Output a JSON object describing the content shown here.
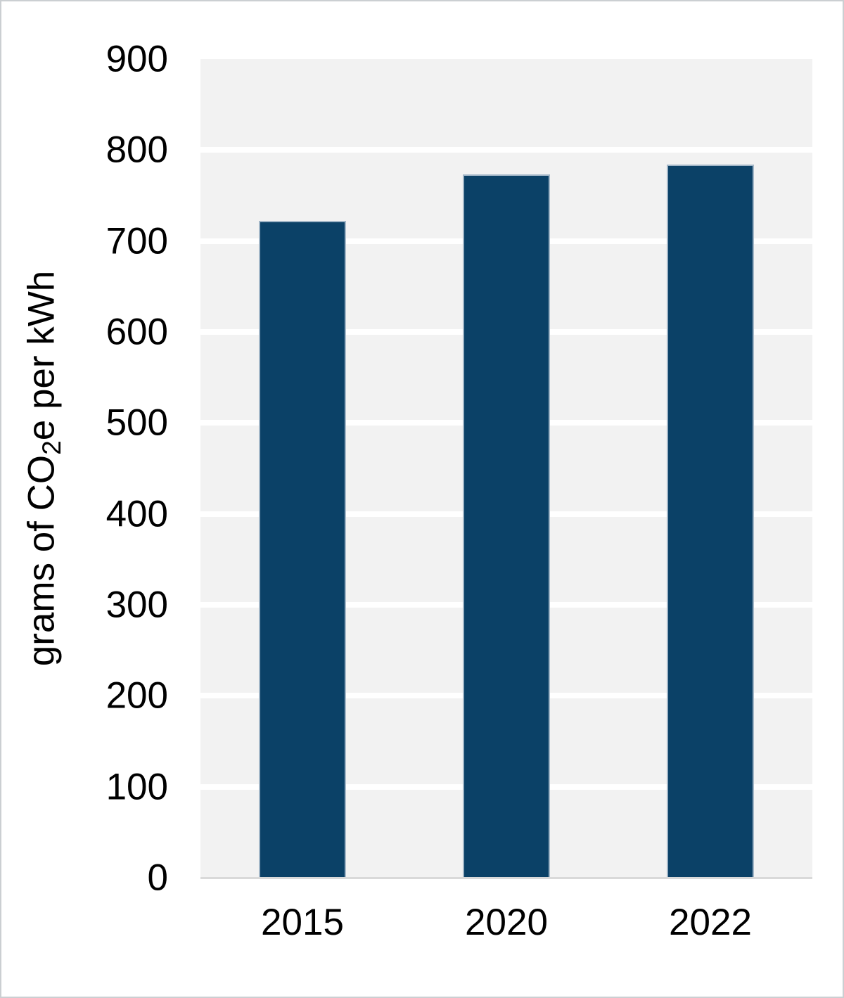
{
  "chart_data": {
    "type": "bar",
    "categories": [
      "2015",
      "2020",
      "2022"
    ],
    "values": [
      722,
      773,
      784
    ],
    "title": "",
    "xlabel": "",
    "ylabel": "grams of CO2e per kWh",
    "ylabel_parts": {
      "prefix": "grams of CO",
      "sub": "2",
      "suffix": "e per kWh"
    },
    "ylim": [
      0,
      900
    ],
    "yticks": [
      0,
      100,
      200,
      300,
      400,
      500,
      600,
      700,
      800,
      900
    ],
    "grid": "horizontal",
    "legend_position": "none",
    "colors": {
      "bar_fill": "#0b4167",
      "bar_border": "#a2b6c7",
      "plot_background": "#f2f2f2",
      "gridline": "#ffffff",
      "axis_line": "#d9d9d9",
      "outer_border": "#cbcfd2",
      "text": "#000000"
    }
  }
}
